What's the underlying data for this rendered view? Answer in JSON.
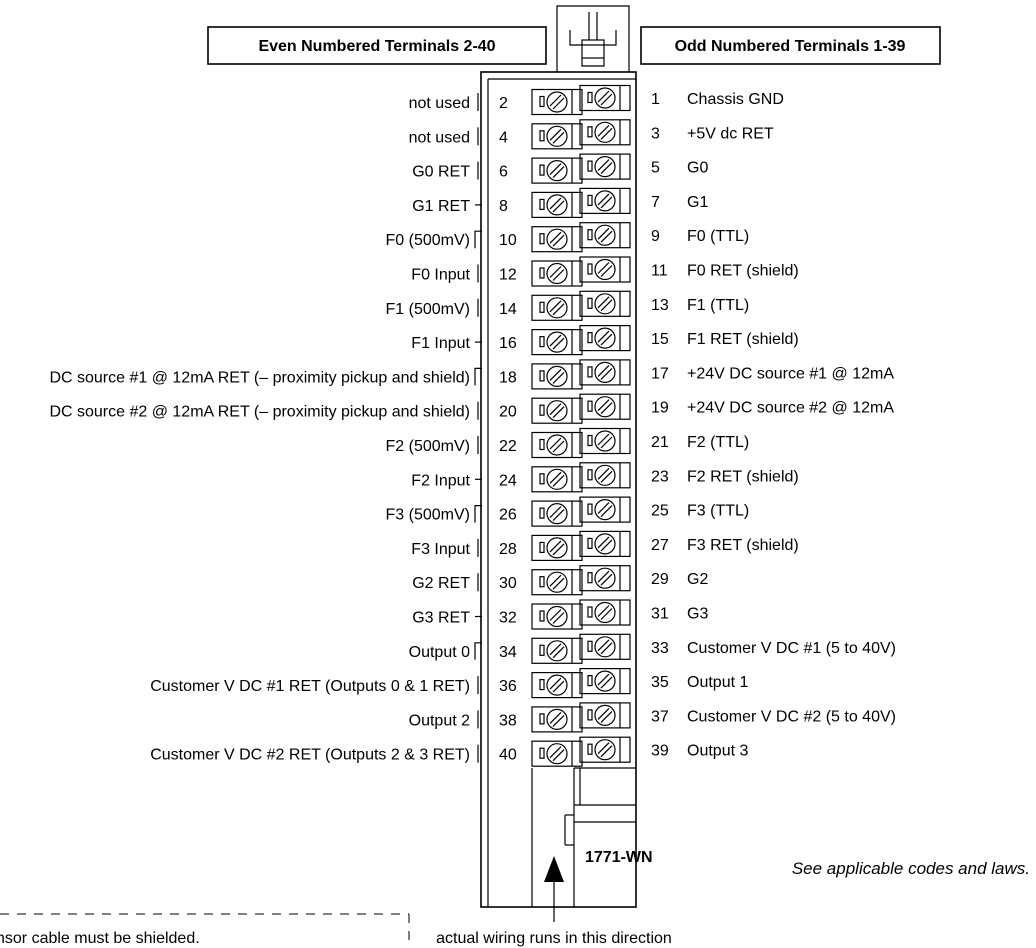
{
  "headers": {
    "even": "Even Numbered Terminals 2-40",
    "odd": "Odd Numbered Terminals 1-39"
  },
  "even_terminals": [
    {
      "num": "2",
      "label": "not used"
    },
    {
      "num": "4",
      "label": "not used"
    },
    {
      "num": "6",
      "label": "G0 RET"
    },
    {
      "num": "8",
      "label": "G1 RET"
    },
    {
      "num": "10",
      "label": "F0 (500mV)"
    },
    {
      "num": "12",
      "label": "F0 Input"
    },
    {
      "num": "14",
      "label": "F1 (500mV)"
    },
    {
      "num": "16",
      "label": "F1 Input"
    },
    {
      "num": "18",
      "label": "DC source #1 @ 12mA RET (– proximity pickup and shield)"
    },
    {
      "num": "20",
      "label": "DC source #2 @ 12mA RET (– proximity pickup and shield)"
    },
    {
      "num": "22",
      "label": "F2 (500mV)"
    },
    {
      "num": "24",
      "label": "F2 Input"
    },
    {
      "num": "26",
      "label": "F3 (500mV)"
    },
    {
      "num": "28",
      "label": "F3 Input"
    },
    {
      "num": "30",
      "label": "G2 RET"
    },
    {
      "num": "32",
      "label": "G3 RET"
    },
    {
      "num": "34",
      "label": "Output 0"
    },
    {
      "num": "36",
      "label": "Customer V DC #1 RET (Outputs 0 & 1 RET)"
    },
    {
      "num": "38",
      "label": "Output 2"
    },
    {
      "num": "40",
      "label": "Customer V DC #2 RET (Outputs 2 & 3 RET)"
    }
  ],
  "odd_terminals": [
    {
      "num": "1",
      "label": "Chassis GND"
    },
    {
      "num": "3",
      "label": "+5V dc RET"
    },
    {
      "num": "5",
      "label": "G0"
    },
    {
      "num": "7",
      "label": "G1"
    },
    {
      "num": "9",
      "label": "F0 (TTL)"
    },
    {
      "num": "11",
      "label": "F0 RET (shield)"
    },
    {
      "num": "13",
      "label": "F1 (TTL)"
    },
    {
      "num": "15",
      "label": "F1 RET (shield)"
    },
    {
      "num": "17",
      "label": "+24V DC source #1 @ 12mA"
    },
    {
      "num": "19",
      "label": "+24V DC source #2 @ 12mA"
    },
    {
      "num": "21",
      "label": "F2 (TTL)"
    },
    {
      "num": "23",
      "label": "F2 RET (shield)"
    },
    {
      "num": "25",
      "label": "F3 (TTL)"
    },
    {
      "num": "27",
      "label": "F3 RET (shield)"
    },
    {
      "num": "29",
      "label": "G2"
    },
    {
      "num": "31",
      "label": "G3"
    },
    {
      "num": "33",
      "label": "Customer V DC #1 (5 to 40V)"
    },
    {
      "num": "35",
      "label": "Output 1"
    },
    {
      "num": "37",
      "label": "Customer V DC #2 (5 to 40V)"
    },
    {
      "num": "39",
      "label": "Output 3"
    }
  ],
  "model": "1771-WN",
  "codes_note": "See applicable codes and laws.",
  "wiring_note": "actual wiring runs in this direction",
  "sensor_note": "nsor cable must be shielded."
}
